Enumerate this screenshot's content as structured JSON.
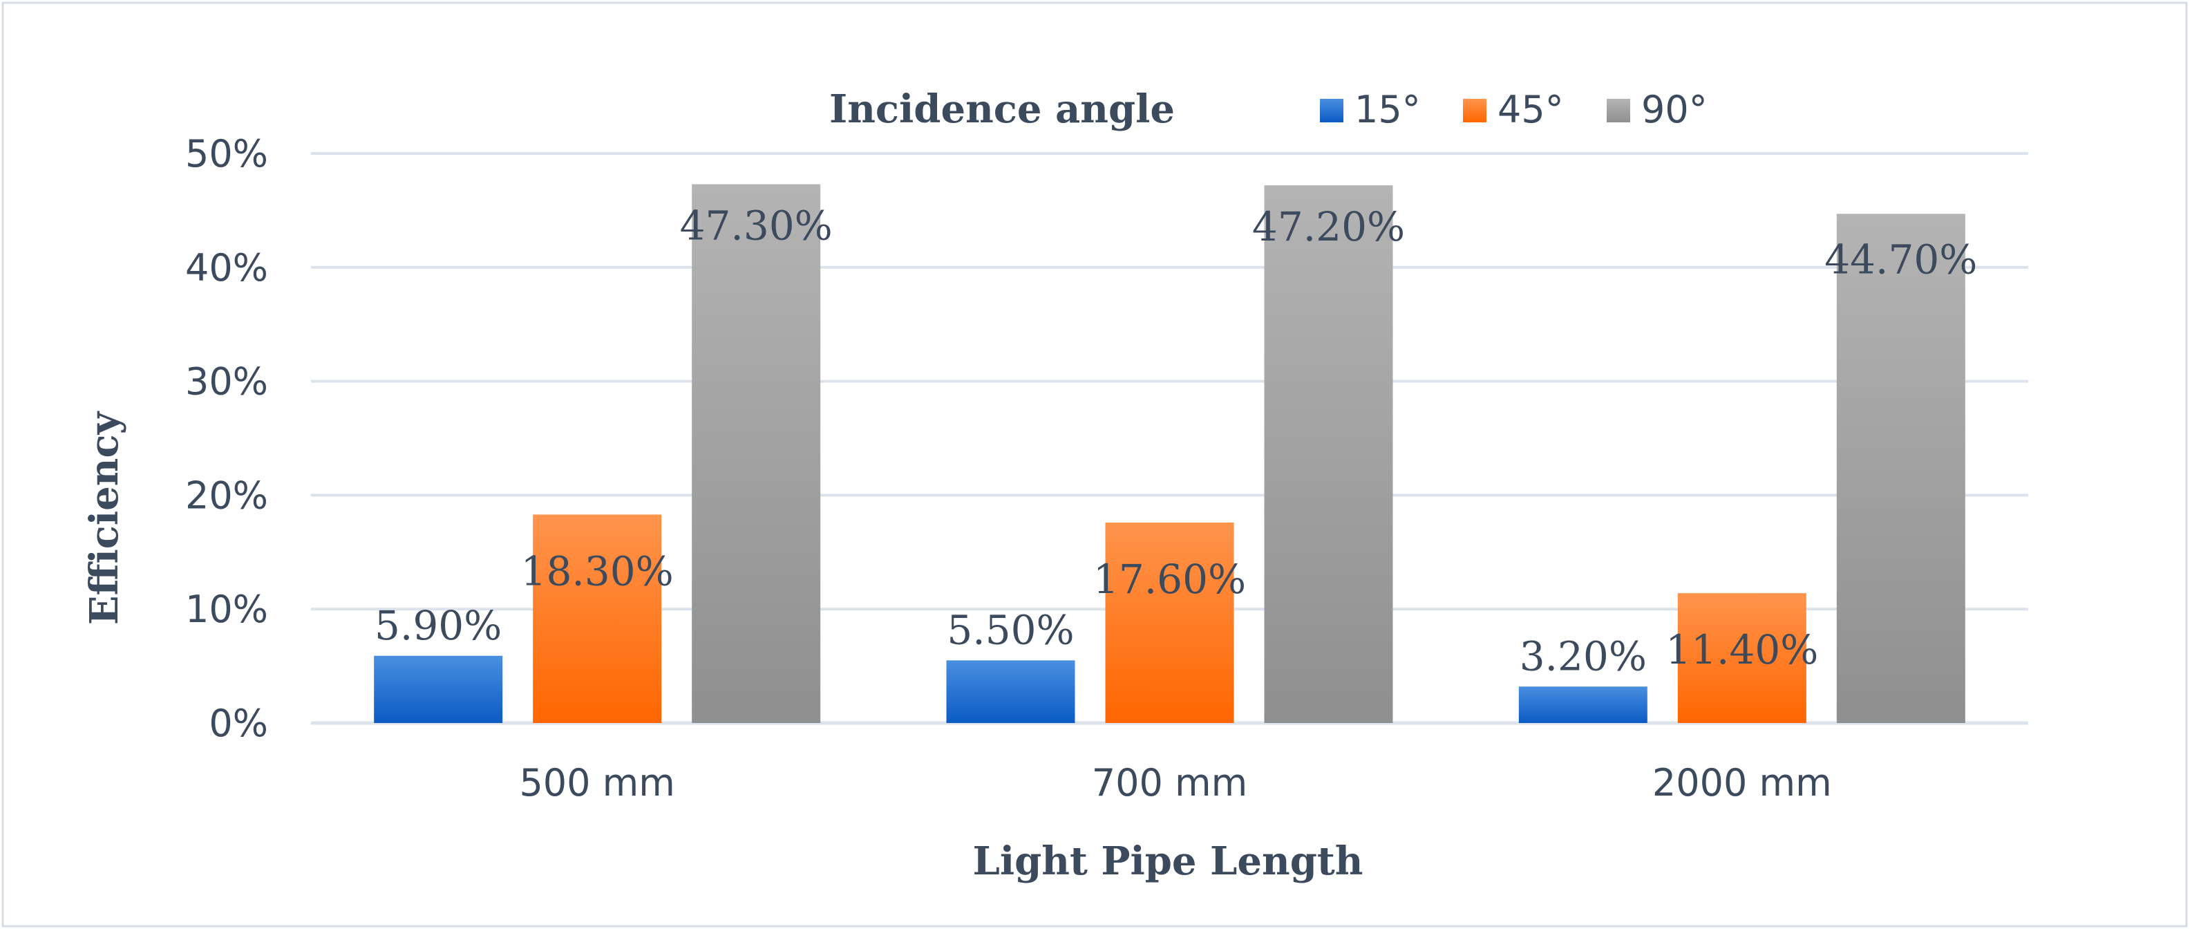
{
  "chart_data": {
    "type": "bar",
    "title": "",
    "legend_title": "Incidence angle",
    "legend_position": "top",
    "xlabel": "Light Pipe Length",
    "ylabel": "Efficiency",
    "categories": [
      "500 mm",
      "700 mm",
      "2000 mm"
    ],
    "series": [
      {
        "name": "15°",
        "values": [
          5.9,
          5.5,
          3.2
        ],
        "labels": [
          "5.90%",
          "5.50%",
          "3.20%"
        ],
        "color_top": "#4A8FE0",
        "color_bottom": "#0A5BC4"
      },
      {
        "name": "45°",
        "values": [
          18.3,
          17.6,
          11.4
        ],
        "labels": [
          "18.30%",
          "17.60%",
          "11.40%"
        ],
        "color_top": "#FF944D",
        "color_bottom": "#FF6600"
      },
      {
        "name": "90°",
        "values": [
          47.3,
          47.2,
          44.7
        ],
        "labels": [
          "47.30%",
          "47.20%",
          "44.70%"
        ],
        "color_top": "#B4B4B4",
        "color_bottom": "#8F8F8F"
      }
    ],
    "ylim": [
      0,
      50
    ],
    "yticks": [
      0,
      10,
      20,
      30,
      40,
      50
    ],
    "ytick_labels": [
      "0%",
      "10%",
      "20%",
      "30%",
      "40%",
      "50%"
    ],
    "grid": true,
    "text_color": "#3B4A5C",
    "grid_color": "#DCE3EC",
    "frame_color": "#D9DEE6"
  }
}
